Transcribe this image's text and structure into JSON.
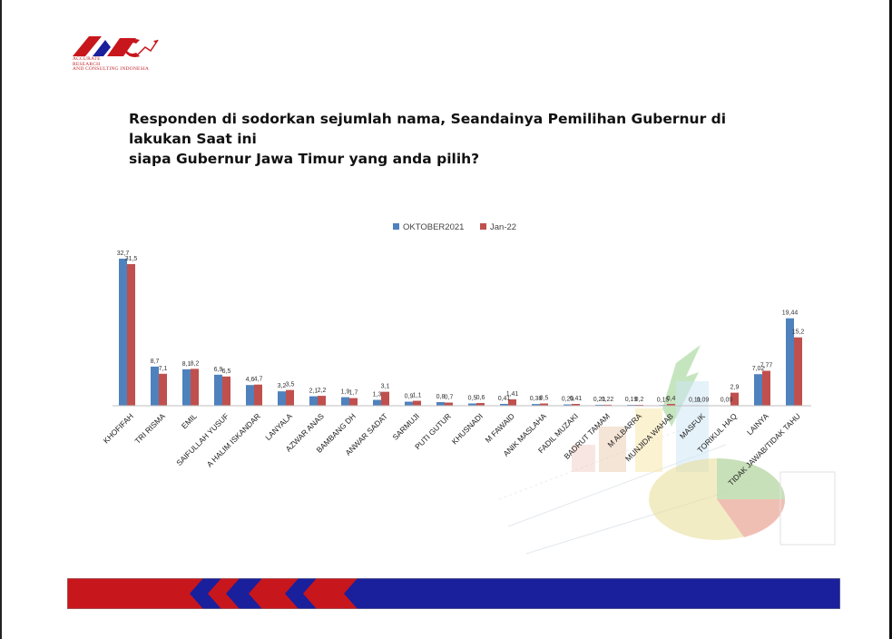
{
  "logo": {
    "lines": [
      "ACCURATE",
      "RESEARCH",
      "AND CONSULTING INDONESIA"
    ]
  },
  "title": {
    "line1": "Responden di sodorkan sejumlah nama, Seandainya Pemilihan Gubernur di",
    "line2": "lakukan Saat ini",
    "line3": "siapa Gubernur Jawa Timur yang anda pilih?"
  },
  "colors": {
    "series1": "#4f81bd",
    "series2": "#c0504d",
    "brand_red": "#c8161d",
    "brand_blue": "#1a1f9c"
  },
  "chart_data": {
    "type": "bar",
    "categories": [
      "KHOFIFAH",
      "TRI RISMA",
      "EMIL",
      "SAIFULLAH YUSUF",
      "A HALIM ISKANDAR",
      "LANYALA",
      "AZWAR ANAS",
      "BAMBANG DH",
      "ANWAR SADAT",
      "SARMUJI",
      "PUTI GUTUR",
      "KHUSNADI",
      "M FAWAID",
      "ANIK MASLAHA",
      "FADIL MUZAKI",
      "BADRUT TAMAM",
      "M ALBARRA",
      "MUNJIDA WAHAB",
      "MASFUK",
      "TORIKUL HAQ",
      "LAINYA",
      "TIDAK JAWAB/TIDAK TAHU"
    ],
    "series": [
      {
        "name": "OKTOBER2021",
        "values": [
          32.7,
          8.7,
          8.1,
          6.9,
          4.6,
          3.2,
          2.1,
          1.9,
          1.3,
          0.9,
          0.8,
          0.5,
          0.41,
          0.38,
          0.29,
          0.21,
          0.19,
          0.15,
          0.11,
          0.09,
          7.02,
          19.44
        ],
        "labels": [
          "32,7",
          "8,7",
          "8,1",
          "6,9",
          "4,6",
          "3,2",
          "2,1",
          "1,9",
          "1,3",
          "0,9",
          "0,8",
          "0,5",
          "0,41",
          "0,38",
          "0,29",
          "0,21",
          "0,19",
          "0,15",
          "0,11",
          "0,09",
          "7,02",
          "19,44"
        ]
      },
      {
        "name": "Jan-22",
        "values": [
          31.5,
          7.1,
          8.2,
          6.5,
          4.7,
          3.5,
          2.2,
          1.7,
          3.1,
          1.1,
          0.7,
          0.6,
          1.41,
          0.5,
          0.41,
          0.22,
          0.2,
          0.4,
          0.09,
          2.9,
          7.77,
          15.2
        ],
        "labels": [
          "31,5",
          "7,1",
          "8,2",
          "6,5",
          "4,7",
          "3,5",
          "2,2",
          "1,7",
          "3,1",
          "1,1",
          "0,7",
          "0,6",
          "1,41",
          "0,5",
          "0,41",
          "0,22",
          "0,2",
          "0,4",
          "0,09",
          "2,9",
          "7,77",
          "15,2"
        ]
      }
    ],
    "ylim": [
      0,
      35
    ],
    "legend_position": "top-center",
    "grid": false
  }
}
